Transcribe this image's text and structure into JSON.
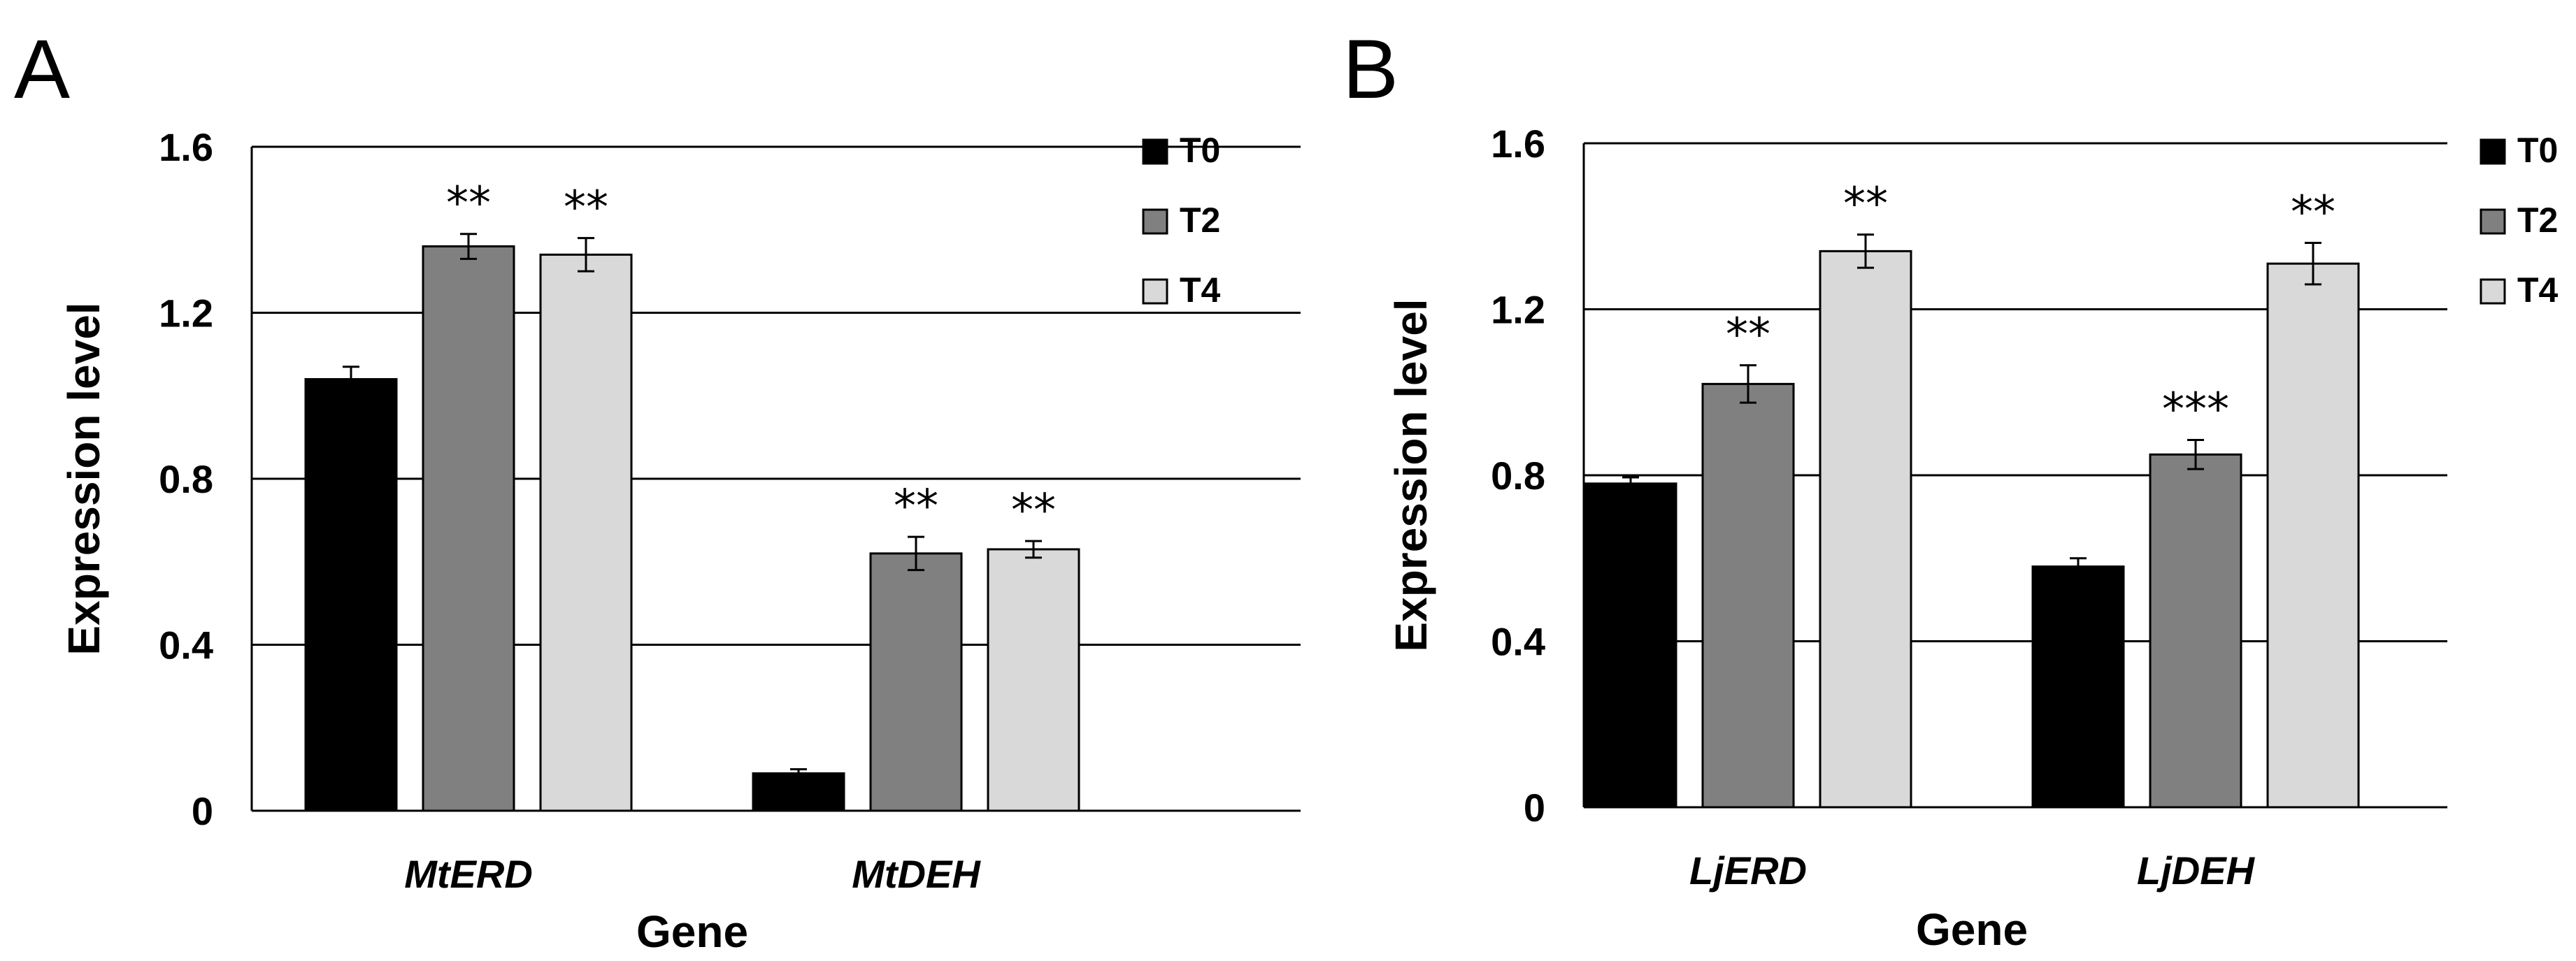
{
  "chart_data": [
    {
      "panel_label": "A",
      "type": "bar",
      "categories": [
        "MtERD",
        "MtDEH"
      ],
      "series": [
        {
          "name": "T0",
          "color": "#000000",
          "values": [
            1.04,
            0.09
          ],
          "errors": [
            0.03,
            0.01
          ],
          "significance": [
            "",
            ""
          ]
        },
        {
          "name": "T2",
          "color": "#808080",
          "values": [
            1.36,
            0.62
          ],
          "errors": [
            0.03,
            0.04
          ],
          "significance": [
            "**",
            "**"
          ]
        },
        {
          "name": "T4",
          "color": "#d9d9d9",
          "values": [
            1.34,
            0.63
          ],
          "errors": [
            0.04,
            0.02
          ],
          "significance": [
            "**",
            "**"
          ]
        }
      ],
      "xlabel": "Gene",
      "ylabel": "Expression level",
      "ylim": [
        0,
        1.6
      ],
      "yticks": [
        0,
        0.4,
        0.8,
        1.2,
        1.6
      ],
      "ytick_labels": [
        "0",
        "0.4",
        "0.8",
        "1.2",
        "1.6"
      ],
      "grid": true,
      "legend": "top-right"
    },
    {
      "panel_label": "B",
      "type": "bar",
      "categories": [
        "LjERD",
        "LjDEH"
      ],
      "series": [
        {
          "name": "T0",
          "color": "#000000",
          "values": [
            0.78,
            0.58
          ],
          "errors": [
            0.015,
            0.02
          ],
          "significance": [
            "",
            ""
          ]
        },
        {
          "name": "T2",
          "color": "#808080",
          "values": [
            1.02,
            0.85
          ],
          "errors": [
            0.045,
            0.035
          ],
          "significance": [
            "**",
            "***"
          ]
        },
        {
          "name": "T4",
          "color": "#d9d9d9",
          "values": [
            1.34,
            1.31
          ],
          "errors": [
            0.04,
            0.05
          ],
          "significance": [
            "**",
            "**"
          ]
        }
      ],
      "xlabel": "Gene",
      "ylabel": "Expression level",
      "ylim": [
        0,
        1.6
      ],
      "yticks": [
        0,
        0.4,
        0.8,
        1.2,
        1.6
      ],
      "ytick_labels": [
        "0",
        "0.4",
        "0.8",
        "1.2",
        "1.6"
      ],
      "grid": true,
      "legend": "top-right"
    }
  ]
}
